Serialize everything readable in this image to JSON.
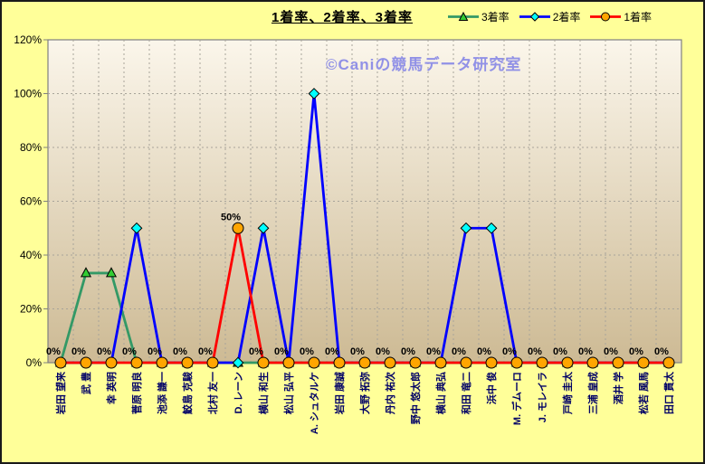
{
  "chart": {
    "title": "1着率、2着率、3着率",
    "watermark": "©Caniの競馬データ研究室",
    "background_color": "#FFFF99",
    "legend": {
      "items": [
        {
          "label": "3着率",
          "line_color": "#339966",
          "marker": "triangle",
          "marker_fill": "#33CC33"
        },
        {
          "label": "2着率",
          "line_color": "#0000FF",
          "marker": "diamond",
          "marker_fill": "#00FFFF"
        },
        {
          "label": "1着率",
          "line_color": "#FF0000",
          "marker": "circle",
          "marker_fill": "#FFA500"
        }
      ]
    }
  },
  "chart_data": {
    "type": "line",
    "title": "1着率、2着率、3着率",
    "categories": [
      "岩田 望来",
      "武 豊",
      "幸 英明",
      "菅原 明良",
      "池添 謙一",
      "鮫島 克駿",
      "北村 友一",
      "D. レーン",
      "横山 和生",
      "松山 弘平",
      "A. シュタルケ",
      "岩田 康誠",
      "大野 拓弥",
      "丹内 祐次",
      "野中 悠太郎",
      "横山 典弘",
      "和田 竜二",
      "浜中 俊",
      "M. デムーロ",
      "J. モレイラ",
      "戸崎 圭太",
      "三浦 皇成",
      "酒井 学",
      "松若 風馬",
      "田口 貫太"
    ],
    "series": [
      {
        "name": "3着率",
        "color": "#339966",
        "marker": "triangle",
        "marker_fill": "#33CC33",
        "values": [
          0,
          33.3,
          33.3,
          0,
          0,
          0,
          0,
          0,
          0,
          0,
          0,
          0,
          0,
          0,
          0,
          0,
          0,
          0,
          0,
          0,
          0,
          0,
          0,
          0,
          0
        ]
      },
      {
        "name": "2着率",
        "color": "#0000FF",
        "marker": "diamond",
        "marker_fill": "#00FFFF",
        "values": [
          0,
          0,
          0,
          50,
          0,
          0,
          0,
          0,
          50,
          0,
          100,
          0,
          0,
          0,
          0,
          0,
          50,
          50,
          0,
          0,
          0,
          0,
          0,
          0,
          0
        ]
      },
      {
        "name": "1着率",
        "color": "#FF0000",
        "marker": "circle",
        "marker_fill": "#FFA500",
        "values": [
          0,
          0,
          0,
          0,
          0,
          0,
          0,
          50,
          0,
          0,
          0,
          0,
          0,
          0,
          0,
          0,
          0,
          0,
          0,
          0,
          0,
          0,
          0,
          0,
          0
        ],
        "data_labels": true
      }
    ],
    "ylim": [
      0,
      120
    ],
    "ytick_step": 20,
    "ytick_labels": [
      "0%",
      "20%",
      "40%",
      "60%",
      "80%",
      "100%",
      "120%"
    ],
    "grid": true,
    "legend_position": "top-right",
    "x_axis_label_color": "#000066",
    "plot_gradient_top": "#FBF6EB",
    "plot_gradient_bottom": "#CDBA94"
  }
}
